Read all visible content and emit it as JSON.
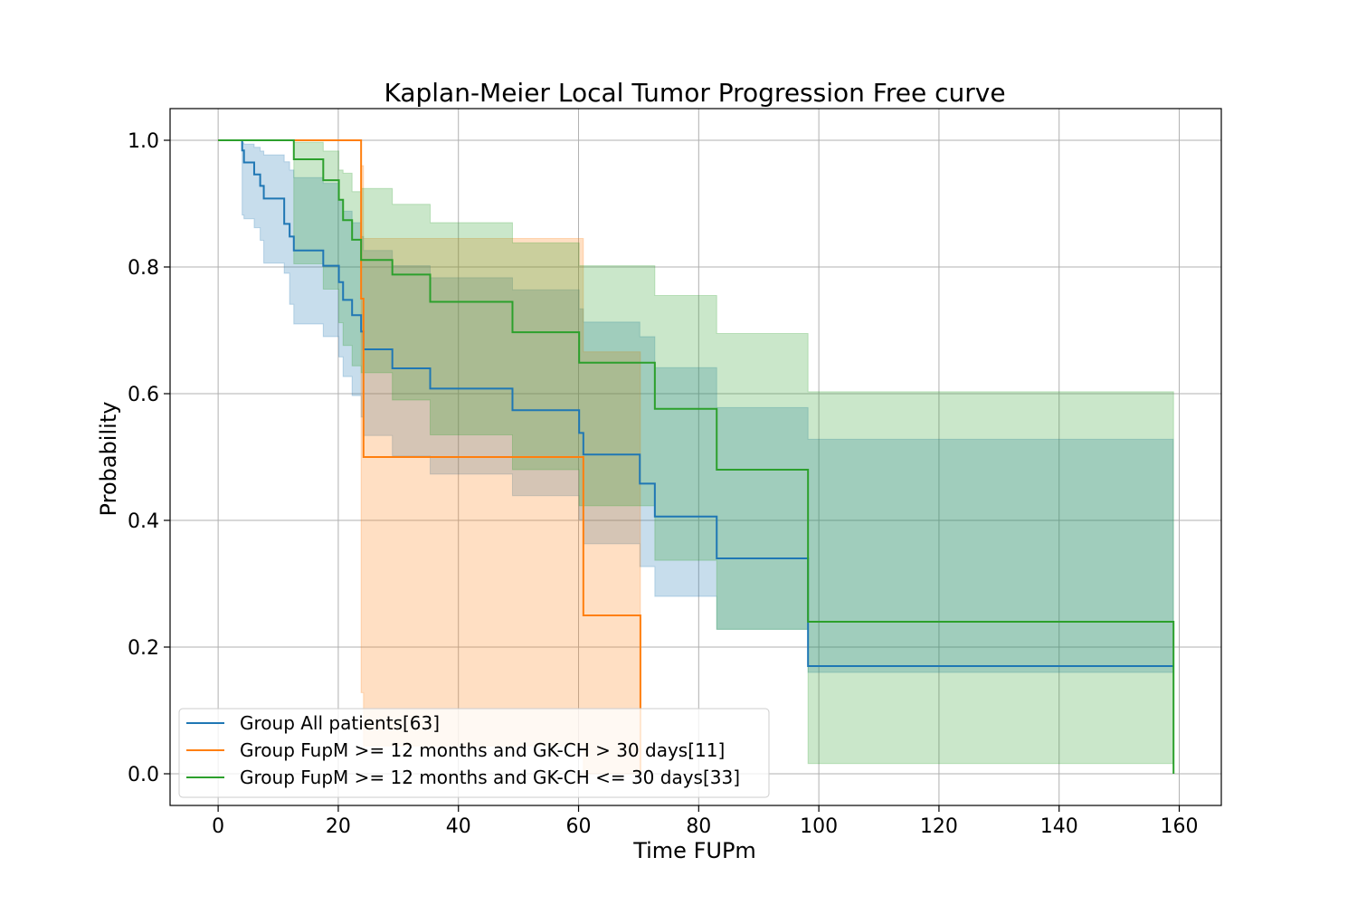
{
  "chart_data": {
    "type": "line",
    "title": "Kaplan-Meier Local Tumor Progression Free curve",
    "xlabel": "Time FUPm",
    "ylabel": "Probability",
    "xlim": [
      -8,
      167
    ],
    "ylim": [
      -0.05,
      1.05
    ],
    "xticks": [
      0,
      20,
      40,
      60,
      80,
      100,
      120,
      140,
      160
    ],
    "yticks": [
      0.0,
      0.2,
      0.4,
      0.6,
      0.8,
      1.0
    ],
    "xtick_labels": [
      "0",
      "20",
      "40",
      "60",
      "80",
      "100",
      "120",
      "140",
      "160"
    ],
    "ytick_labels": [
      "0.0",
      "0.2",
      "0.4",
      "0.6",
      "0.8",
      "1.0"
    ],
    "grid": true,
    "legend_position": "lower-left",
    "series": [
      {
        "name": "Group All patients[63]",
        "color": "#1f77b4",
        "x": [
          0,
          4,
          4.3,
          6,
          7,
          7.6,
          11,
          11.9,
          12.6,
          17.5,
          20.1,
          20.8,
          22.3,
          23.8,
          24.2,
          29,
          35.3,
          49,
          60.1,
          60.8,
          70.2,
          72.7,
          83,
          98.2,
          159
        ],
        "y": [
          1.0,
          0.984,
          0.965,
          0.946,
          0.928,
          0.908,
          0.868,
          0.848,
          0.826,
          0.802,
          0.776,
          0.748,
          0.724,
          0.698,
          0.67,
          0.64,
          0.608,
          0.574,
          0.538,
          0.504,
          0.458,
          0.406,
          0.34,
          0.17,
          0.17
        ],
        "ci_lower": [
          1.0,
          0.882,
          0.876,
          0.862,
          0.842,
          0.806,
          0.79,
          0.741,
          0.71,
          0.69,
          0.658,
          0.627,
          0.597,
          0.563,
          0.534,
          0.502,
          0.473,
          0.439,
          0.401,
          0.363,
          0.327,
          0.28,
          0.228,
          0.16,
          0.16
        ],
        "ci_upper": [
          1.0,
          0.996,
          0.994,
          0.989,
          0.983,
          0.977,
          0.966,
          0.953,
          0.941,
          0.932,
          0.906,
          0.888,
          0.87,
          0.848,
          0.826,
          0.802,
          0.783,
          0.764,
          0.734,
          0.713,
          0.69,
          0.641,
          0.578,
          0.528,
          0.467
        ]
      },
      {
        "name": "Group FupM >= 12 months and GK-CH > 30 days[11]",
        "color": "#ff7f0e",
        "x": [
          0,
          22.3,
          23.8,
          24.2,
          60.8,
          70.2,
          70.3
        ],
        "y": [
          1.0,
          1.0,
          0.75,
          0.5,
          0.25,
          0.25,
          0.0
        ],
        "ci_lower": [
          1.0,
          1.0,
          0.128,
          0.044,
          0.0,
          0.0,
          0.0
        ],
        "ci_upper": [
          1.0,
          1.0,
          0.96,
          0.845,
          0.666,
          0.666,
          0.0
        ]
      },
      {
        "name": "Group FupM >= 12 months and GK-CH <= 30 days[33]",
        "color": "#2ca02c",
        "x": [
          0,
          12.6,
          17.5,
          20.1,
          20.8,
          22.3,
          23.8,
          29,
          35.3,
          49,
          60.1,
          72.7,
          83,
          98.2,
          159,
          159.05
        ],
        "y": [
          1.0,
          0.97,
          0.937,
          0.906,
          0.874,
          0.843,
          0.811,
          0.788,
          0.745,
          0.697,
          0.649,
          0.576,
          0.48,
          0.24,
          0.24,
          0.0
        ],
        "ci_lower": [
          1.0,
          0.805,
          0.765,
          0.712,
          0.676,
          0.644,
          0.633,
          0.59,
          0.535,
          0.48,
          0.423,
          0.337,
          0.228,
          0.016,
          0.016,
          0.0
        ],
        "ci_upper": [
          1.0,
          0.997,
          0.983,
          0.953,
          0.948,
          0.919,
          0.924,
          0.899,
          0.87,
          0.838,
          0.802,
          0.755,
          0.695,
          0.603,
          0.603,
          0.0
        ]
      }
    ]
  }
}
